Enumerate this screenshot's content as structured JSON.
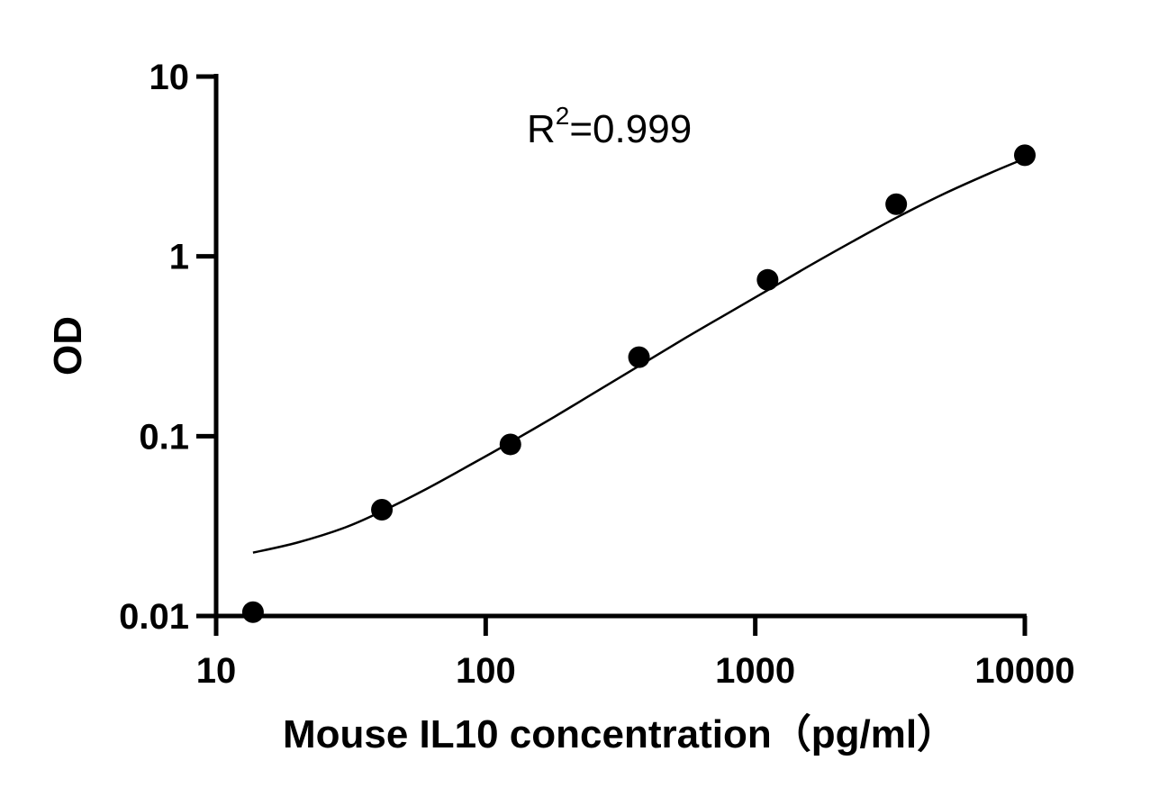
{
  "chart_data": {
    "type": "scatter",
    "x_scale": "log",
    "y_scale": "log",
    "xlabel": "Mouse IL10 concentration（pg/ml）",
    "ylabel": "OD",
    "xlim": [
      10,
      10000
    ],
    "ylim": [
      0.01,
      10
    ],
    "x_ticks": [
      "10",
      "100",
      "1000",
      "10000"
    ],
    "y_ticks": [
      "0.01",
      "0.1",
      "1",
      "10"
    ],
    "annotation": {
      "r_label": "R",
      "r_superscript": "2",
      "r_value": "=0.999"
    },
    "grid": false,
    "legend": "none",
    "point_color": "#000000",
    "series": [
      {
        "x": [
          13.7,
          41.2,
          123.5,
          370.4,
          1111.1,
          3333.3,
          10000
        ],
        "y": [
          0.0105,
          0.039,
          0.09,
          0.275,
          0.74,
          1.95,
          3.65
        ]
      }
    ],
    "fit_curve": {
      "x": [
        13.7,
        20,
        30,
        41.2,
        60,
        90,
        123.5,
        180,
        250,
        370.4,
        550,
        800,
        1111.1,
        1600,
        2300,
        3333.3,
        5000,
        7500,
        10000
      ],
      "y": [
        0.0225,
        0.0256,
        0.031,
        0.0382,
        0.0507,
        0.0708,
        0.0924,
        0.1282,
        0.1725,
        0.2459,
        0.3514,
        0.4872,
        0.6476,
        0.8918,
        1.2109,
        1.6394,
        2.2236,
        2.9216,
        3.4979
      ]
    }
  }
}
